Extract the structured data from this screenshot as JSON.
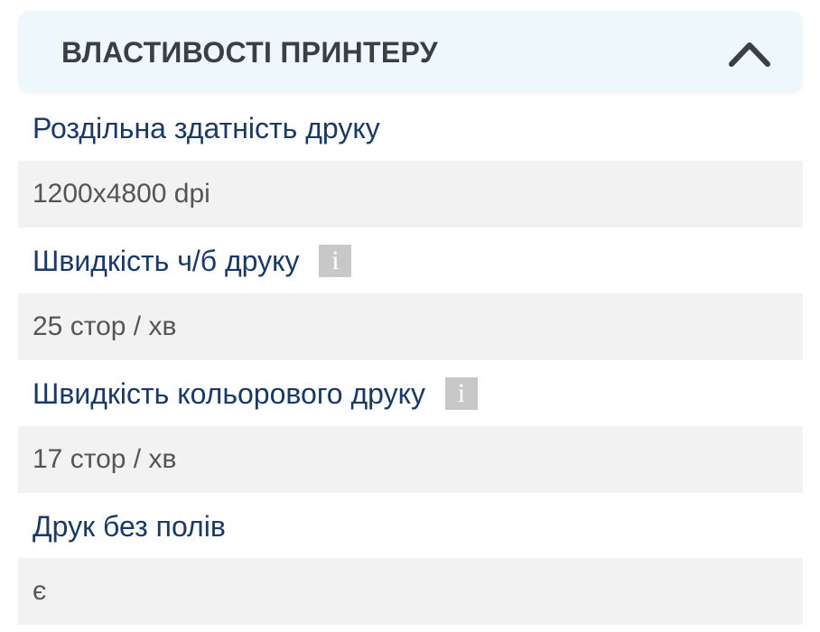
{
  "section": {
    "title": "ВЛАСТИВОСТІ ПРИНТЕРУ",
    "toggle_icon": "chevron-up-icon"
  },
  "properties": [
    {
      "label": "Роздільна здатність друку",
      "value": "1200x4800 dpi",
      "info": false
    },
    {
      "label": "Швидкість ч/б друку",
      "value": "25 стор / хв",
      "info": true
    },
    {
      "label": "Швидкість кольорового друку",
      "value": "17 стор / хв",
      "info": true
    },
    {
      "label": "Друк без полів",
      "value": "є",
      "info": false
    }
  ],
  "info_glyph": "i"
}
